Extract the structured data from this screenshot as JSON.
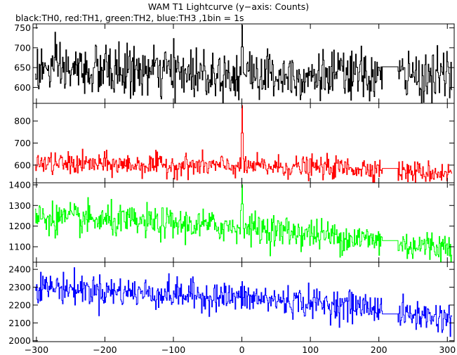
{
  "chart_data": {
    "type": "line",
    "title": "WAM T1 Lightcurve (y−axis: Counts)",
    "subtitle": "black:TH0, red:TH1, green:TH2, blue:TH3 ,1bin = 1s",
    "xlim": [
      -305,
      310
    ],
    "xticks": [
      -300,
      -200,
      -100,
      0,
      100,
      200,
      300
    ],
    "gap": [
      205,
      228
    ],
    "bin_width": 1,
    "panels": [
      {
        "name": "TH0",
        "color": "#000000",
        "ylim": [
          560,
          760
        ],
        "yticks": [
          600,
          650,
          700,
          750
        ],
        "trend": [
          [
            -305,
            645
          ],
          [
            200,
            628
          ],
          [
            228,
            628
          ],
          [
            310,
            628
          ]
        ],
        "noise": 32,
        "gap_level": 652,
        "peak": {
          "x": 0,
          "y": 757
        }
      },
      {
        "name": "TH1",
        "color": "#ff0000",
        "ylim": [
          520,
          880
        ],
        "yticks": [
          600,
          700,
          800
        ],
        "trend": [
          [
            -305,
            608
          ],
          [
            200,
            585
          ],
          [
            228,
            570
          ],
          [
            310,
            565
          ]
        ],
        "noise": 25,
        "gap_level": 585,
        "peak": {
          "x": 0,
          "y": 870
        }
      },
      {
        "name": "TH2",
        "color": "#00ff00",
        "ylim": [
          1025,
          1410
        ],
        "yticks": [
          1100,
          1200,
          1300,
          1400
        ],
        "trend": [
          [
            -305,
            1245
          ],
          [
            -200,
            1225
          ],
          [
            0,
            1195
          ],
          [
            200,
            1130
          ],
          [
            228,
            1110
          ],
          [
            310,
            1100
          ]
        ],
        "noise": 38,
        "gap_level": 1130,
        "peak": {
          "x": 0,
          "y": 1400
        }
      },
      {
        "name": "TH3",
        "color": "#0000ff",
        "ylim": [
          1995,
          2440
        ],
        "yticks": [
          2000,
          2100,
          2200,
          2300,
          2400
        ],
        "trend": [
          [
            -305,
            2305
          ],
          [
            -200,
            2280
          ],
          [
            0,
            2240
          ],
          [
            200,
            2185
          ],
          [
            228,
            2150
          ],
          [
            310,
            2125
          ]
        ],
        "noise": 42,
        "gap_level": 2150,
        "peak": null
      }
    ]
  }
}
